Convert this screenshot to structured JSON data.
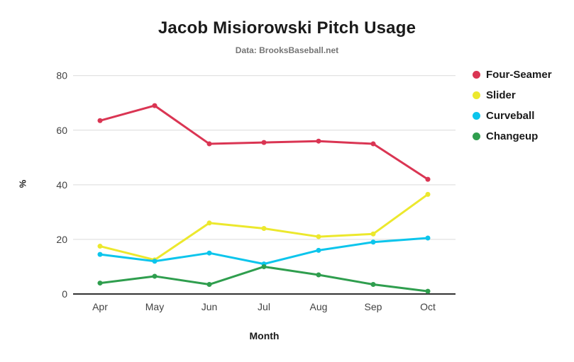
{
  "chart": {
    "title": "Jacob Misiorowski Pitch Usage",
    "subtitle": "Data: BrooksBaseball.net",
    "xlabel": "Month",
    "ylabel": "%"
  },
  "chart_data": {
    "type": "line",
    "title": "Jacob Misiorowski Pitch Usage",
    "subtitle": "Data: BrooksBaseball.net",
    "categories": [
      "Apr",
      "May",
      "Jun",
      "Jul",
      "Aug",
      "Sep",
      "Oct"
    ],
    "series": [
      {
        "name": "Four-Seamer",
        "color": "#da3553",
        "values": [
          63.5,
          69,
          55,
          55.5,
          56,
          55,
          42
        ]
      },
      {
        "name": "Slider",
        "color": "#ece82d",
        "values": [
          17.5,
          12.5,
          26,
          24,
          21,
          22,
          36.5
        ]
      },
      {
        "name": "Curveball",
        "color": "#0cc5ec",
        "values": [
          14.5,
          12,
          15,
          11,
          16,
          19,
          20.5
        ]
      },
      {
        "name": "Changeup",
        "color": "#2f9e4e",
        "values": [
          4,
          6.5,
          3.5,
          10,
          7,
          3.5,
          1
        ]
      }
    ],
    "xlabel": "Month",
    "ylabel": "%",
    "yticks": [
      0,
      20,
      40,
      60,
      80
    ],
    "ylim": [
      0,
      80
    ],
    "grid": true,
    "legend_position": "right",
    "gridline_color": "#dadada",
    "baseline_color": "#333333"
  }
}
